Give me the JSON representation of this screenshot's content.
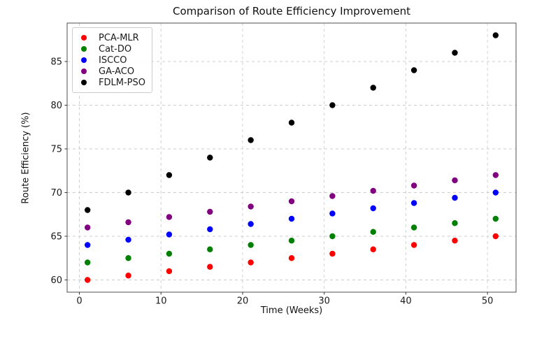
{
  "chart_data": {
    "type": "scatter",
    "title": "Comparison of Route Efficiency Improvement",
    "xlabel": "Time (Weeks)",
    "ylabel": "Route Efficiency (%)",
    "x": [
      1,
      6,
      11,
      16,
      21,
      26,
      31,
      36,
      41,
      46,
      51
    ],
    "series": [
      {
        "name": "PCA-MLR",
        "color": "#ff0000",
        "values": [
          60.0,
          60.5,
          61.0,
          61.5,
          62.0,
          62.5,
          63.0,
          63.5,
          64.0,
          64.5,
          65.0
        ]
      },
      {
        "name": "Cat-DO",
        "color": "#008000",
        "values": [
          62.0,
          62.5,
          63.0,
          63.5,
          64.0,
          64.5,
          65.0,
          65.5,
          66.0,
          66.5,
          67.0
        ]
      },
      {
        "name": "ISCCO",
        "color": "#0000ff",
        "values": [
          64.0,
          64.6,
          65.2,
          65.8,
          66.4,
          67.0,
          67.6,
          68.2,
          68.8,
          69.4,
          70.0
        ]
      },
      {
        "name": "GA-ACO",
        "color": "#800080",
        "values": [
          66.0,
          66.6,
          67.2,
          67.8,
          68.4,
          69.0,
          69.6,
          70.2,
          70.8,
          71.4,
          72.0
        ]
      },
      {
        "name": "FDLM-PSO",
        "color": "#000000",
        "values": [
          68,
          70,
          72,
          74,
          76,
          78,
          80,
          82,
          84,
          86,
          88
        ]
      }
    ],
    "xticks": [
      0,
      10,
      20,
      30,
      40,
      50
    ],
    "yticks": [
      60,
      65,
      70,
      75,
      80,
      85
    ],
    "xlim": [
      -1.5,
      53.5
    ],
    "ylim": [
      58.6,
      89.4
    ],
    "grid": true,
    "legend_position": "upper left",
    "marker_radius": 4.2
  }
}
